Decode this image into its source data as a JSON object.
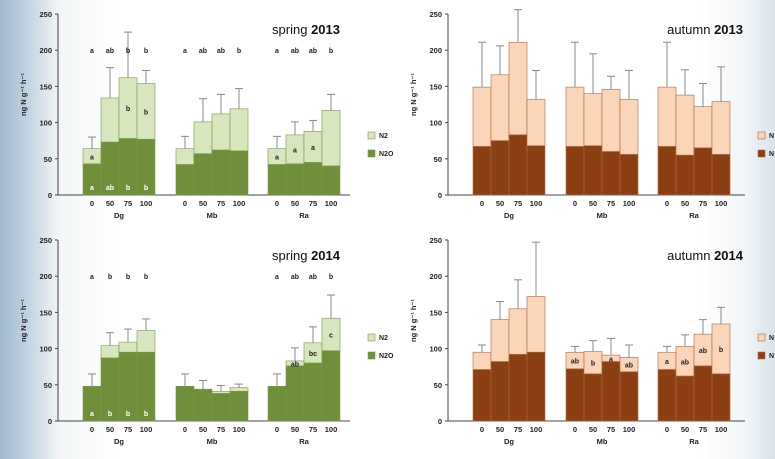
{
  "chart_data": [
    {
      "type": "bar",
      "stacked": true,
      "title_prefix": "spring",
      "title_year": "2013",
      "ylabel": "ng N g⁻¹ h⁻¹",
      "ylim": [
        0,
        250
      ],
      "yticks": [
        0,
        50,
        100,
        150,
        200,
        250
      ],
      "grid": false,
      "legend": "right",
      "palette": "spring",
      "colors": {
        "bottom": "#6f8f3a",
        "top": "#d7e6bd",
        "stroke": "#7a9a4a"
      },
      "groups": [
        {
          "name": "Dg",
          "categories": [
            "0",
            "50",
            "75",
            "100"
          ],
          "n2o": [
            43,
            73,
            78,
            77
          ],
          "total": [
            64,
            134,
            162,
            154
          ],
          "err": [
            16,
            42,
            63,
            18
          ],
          "top_letters": [
            "a",
            "ab",
            "b",
            "b"
          ],
          "n2_letters": [
            "a",
            "",
            "b",
            "b"
          ],
          "n2o_letters": [
            "a",
            "ab",
            "b",
            "b"
          ]
        },
        {
          "name": "Mb",
          "categories": [
            "0",
            "50",
            "75",
            "100"
          ],
          "n2o": [
            42,
            57,
            62,
            61
          ],
          "total": [
            64,
            101,
            112,
            119
          ],
          "err": [
            17,
            32,
            27,
            28
          ],
          "top_letters": [
            "a",
            "ab",
            "ab",
            "b"
          ],
          "n2_letters": [
            "",
            "",
            "",
            ""
          ],
          "n2o_letters": [
            "",
            "",
            "",
            ""
          ]
        },
        {
          "name": "Ra",
          "categories": [
            "0",
            "50",
            "75",
            "100"
          ],
          "n2o": [
            42,
            43,
            45,
            40
          ],
          "total": [
            64,
            83,
            88,
            117
          ],
          "err": [
            17,
            18,
            15,
            22
          ],
          "top_letters": [
            "a",
            "ab",
            "ab",
            "b"
          ],
          "n2_letters": [
            "a",
            "a",
            "a",
            ""
          ],
          "n2o_letters": [
            "",
            "",
            "",
            ""
          ]
        }
      ],
      "legend_entries": [
        "N2",
        "N2O"
      ]
    },
    {
      "type": "bar",
      "stacked": true,
      "title_prefix": "autumn",
      "title_year": "2013",
      "ylabel": "ng N g⁻¹ h⁻¹",
      "ylim": [
        0,
        250
      ],
      "yticks": [
        0,
        50,
        100,
        150,
        200,
        250
      ],
      "grid": false,
      "legend": "right",
      "palette": "autumn",
      "colors": {
        "bottom": "#8b3f13",
        "top": "#fbd5b7",
        "stroke": "#a86a45"
      },
      "groups": [
        {
          "name": "Dg",
          "categories": [
            "0",
            "50",
            "75",
            "100"
          ],
          "n2o": [
            67,
            75,
            83,
            68
          ],
          "total": [
            149,
            166,
            211,
            132
          ],
          "err": [
            62,
            40,
            45,
            40
          ],
          "top_letters": [
            "",
            "",
            "",
            ""
          ],
          "n2_letters": [
            "",
            "",
            "",
            ""
          ],
          "n2o_letters": [
            "",
            "",
            "",
            ""
          ]
        },
        {
          "name": "Mb",
          "categories": [
            "0",
            "50",
            "75",
            "100"
          ],
          "n2o": [
            67,
            68,
            60,
            56
          ],
          "total": [
            149,
            140,
            146,
            132
          ],
          "err": [
            62,
            55,
            18,
            40
          ],
          "top_letters": [
            "",
            "",
            "",
            ""
          ],
          "n2_letters": [
            "",
            "",
            "",
            ""
          ],
          "n2o_letters": [
            "",
            "",
            "",
            ""
          ]
        },
        {
          "name": "Ra",
          "categories": [
            "0",
            "50",
            "75",
            "100"
          ],
          "n2o": [
            67,
            55,
            65,
            56
          ],
          "total": [
            149,
            138,
            122,
            129
          ],
          "err": [
            62,
            35,
            32,
            48
          ],
          "top_letters": [
            "",
            "",
            "",
            ""
          ],
          "n2_letters": [
            "",
            "",
            "",
            ""
          ],
          "n2o_letters": [
            "",
            "",
            "",
            ""
          ]
        }
      ],
      "legend_entries": [
        "N",
        "N"
      ]
    },
    {
      "type": "bar",
      "stacked": true,
      "title_prefix": "spring",
      "title_year": "2014",
      "ylabel": "ng N g⁻¹ h⁻¹",
      "ylim": [
        0,
        250
      ],
      "yticks": [
        0,
        50,
        100,
        150,
        200,
        250
      ],
      "grid": false,
      "legend": "right",
      "palette": "spring",
      "colors": {
        "bottom": "#6f8f3a",
        "top": "#d7e6bd",
        "stroke": "#7a9a4a"
      },
      "groups": [
        {
          "name": "Dg",
          "categories": [
            "0",
            "50",
            "75",
            "100"
          ],
          "n2o": [
            48,
            87,
            95,
            95
          ],
          "total": [
            48,
            104,
            109,
            125
          ],
          "err": [
            17,
            18,
            18,
            16
          ],
          "top_letters": [
            "a",
            "b",
            "b",
            "b"
          ],
          "n2_letters": [
            "",
            "",
            "",
            ""
          ],
          "n2o_letters": [
            "a",
            "b",
            "b",
            "b"
          ]
        },
        {
          "name": "Mb",
          "categories": [
            "0",
            "50",
            "75",
            "100"
          ],
          "n2o": [
            48,
            44,
            38,
            41
          ],
          "total": [
            48,
            44,
            41,
            46
          ],
          "err": [
            17,
            12,
            8,
            5
          ],
          "top_letters": [
            "",
            "",
            "",
            ""
          ],
          "n2_letters": [
            "",
            "",
            "",
            ""
          ],
          "n2o_letters": [
            "",
            "",
            "",
            ""
          ]
        },
        {
          "name": "Ra",
          "categories": [
            "0",
            "50",
            "75",
            "100"
          ],
          "n2o": [
            48,
            76,
            80,
            97
          ],
          "total": [
            48,
            83,
            108,
            142
          ],
          "err": [
            17,
            18,
            22,
            32
          ],
          "top_letters": [
            "a",
            "ab",
            "ab",
            "b"
          ],
          "n2_letters": [
            "",
            "ab",
            "bc",
            "c"
          ],
          "n2o_letters": [
            "",
            "",
            "",
            ""
          ]
        }
      ],
      "legend_entries": [
        "N2",
        "N2O"
      ]
    },
    {
      "type": "bar",
      "stacked": true,
      "title_prefix": "autumn",
      "title_year": "2014",
      "ylabel": "ng N g⁻¹ h⁻¹",
      "ylim": [
        0,
        250
      ],
      "yticks": [
        0,
        50,
        100,
        150,
        200,
        250
      ],
      "grid": false,
      "legend": "right",
      "palette": "autumn",
      "colors": {
        "bottom": "#8b3f13",
        "top": "#fbd5b7",
        "stroke": "#a86a45"
      },
      "groups": [
        {
          "name": "Dg",
          "categories": [
            "0",
            "50",
            "75",
            "100"
          ],
          "n2o": [
            71,
            82,
            92,
            95
          ],
          "total": [
            95,
            140,
            155,
            172
          ],
          "err": [
            10,
            25,
            40,
            75
          ],
          "top_letters": [
            "",
            "",
            "",
            ""
          ],
          "n2_letters": [
            "",
            "",
            "",
            ""
          ],
          "n2o_letters": [
            "",
            "",
            "",
            ""
          ]
        },
        {
          "name": "Mb",
          "categories": [
            "0",
            "50",
            "75",
            "100"
          ],
          "n2o": [
            72,
            65,
            82,
            68
          ],
          "total": [
            95,
            96,
            91,
            88
          ],
          "err": [
            8,
            15,
            23,
            17
          ],
          "top_letters": [
            "",
            "",
            "",
            ""
          ],
          "n2_letters": [
            "ab",
            "b",
            "a",
            "ab"
          ],
          "n2o_letters": [
            "",
            "",
            "",
            ""
          ]
        },
        {
          "name": "Ra",
          "categories": [
            "0",
            "50",
            "75",
            "100"
          ],
          "n2o": [
            71,
            62,
            76,
            65
          ],
          "total": [
            95,
            103,
            120,
            134
          ],
          "err": [
            8,
            16,
            20,
            23
          ],
          "top_letters": [
            "",
            "",
            "",
            ""
          ],
          "n2_letters": [
            "a",
            "ab",
            "ab",
            "b"
          ],
          "n2o_letters": [
            "",
            "",
            "",
            ""
          ]
        }
      ],
      "legend_entries": [
        "N",
        "N"
      ]
    }
  ]
}
